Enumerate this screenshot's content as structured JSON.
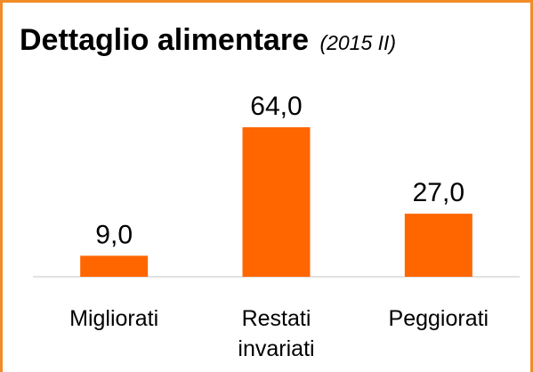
{
  "chart_data": {
    "type": "bar",
    "title": "Dettaglio alimentare",
    "subtitle": "(2015 II)",
    "categories": [
      "Migliorati",
      "Restati invariati",
      "Peggiorati"
    ],
    "values": [
      9,
      64,
      27
    ],
    "value_labels": [
      "9,0",
      "64,0",
      "27,0"
    ],
    "color": "#ff6600",
    "border_color": "#f28c28"
  }
}
